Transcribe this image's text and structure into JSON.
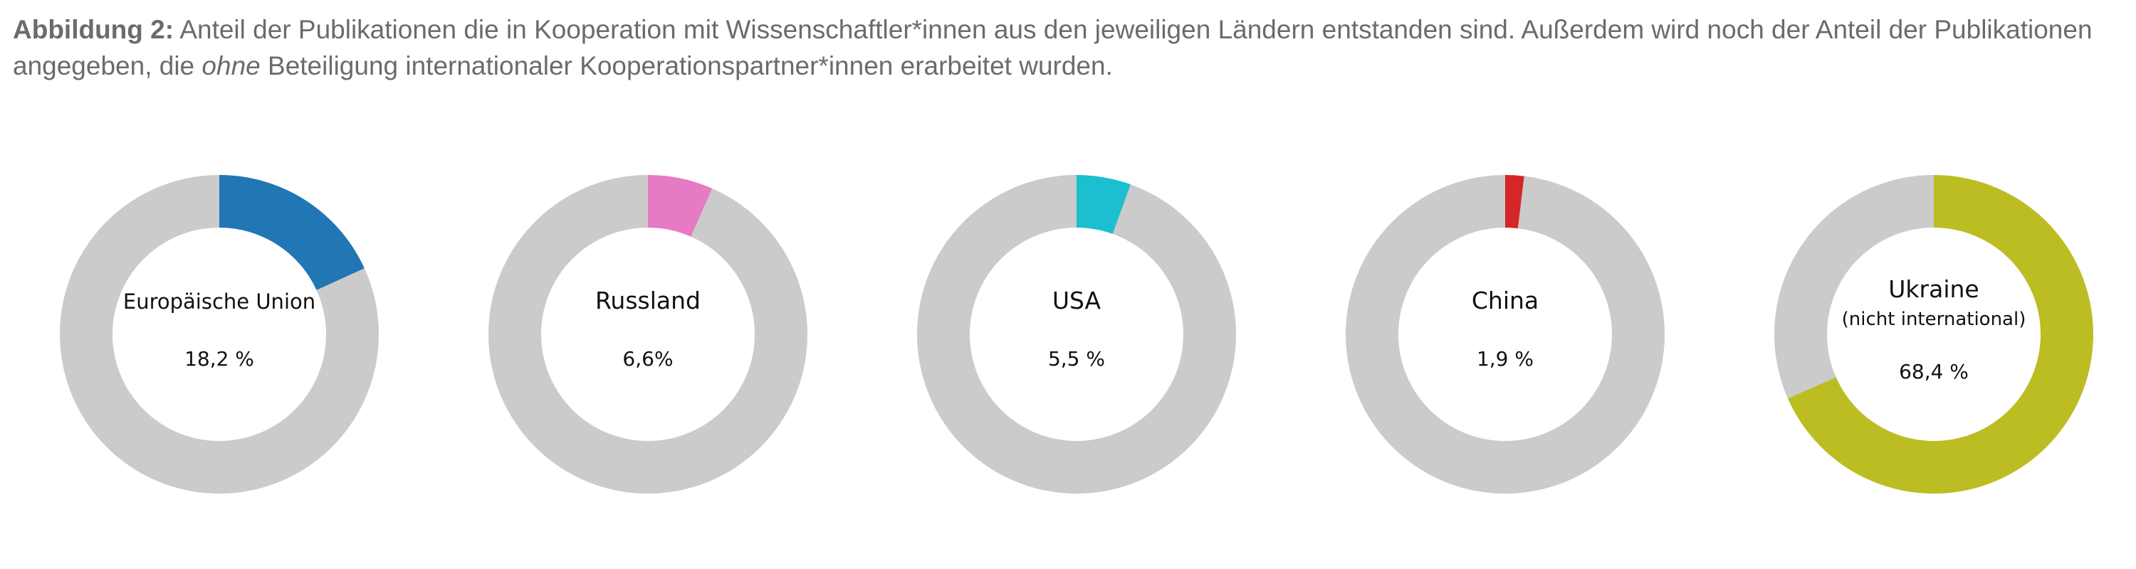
{
  "caption": {
    "label": "Abbildung 2:",
    "text_part1": " Anteil der Publikationen die in Kooperation mit Wissenschaftler*innen aus den jeweiligen Ländern entstanden sind. Außerdem wird noch der Anteil der Publikationen angegeben, die ",
    "text_emphasis": "ohne",
    "text_part2": " Beteiligung internationaler Kooperationspartner*innen erarbeitet wurden."
  },
  "colors": {
    "remainder": "#cbcbcb"
  },
  "chart_data": [
    {
      "type": "pie",
      "donut": true,
      "name": "Europäische Union",
      "subtitle": "",
      "value": 18.2,
      "value_label": "18,2 %",
      "color": "#2176b4"
    },
    {
      "type": "pie",
      "donut": true,
      "name": "Russland",
      "subtitle": "",
      "value": 6.6,
      "value_label": "6,6%",
      "color": "#e67ac4"
    },
    {
      "type": "pie",
      "donut": true,
      "name": "USA",
      "subtitle": "",
      "value": 5.5,
      "value_label": "5,5 %",
      "color": "#1bbfcf"
    },
    {
      "type": "pie",
      "donut": true,
      "name": "China",
      "subtitle": "",
      "value": 1.9,
      "value_label": "1,9 %",
      "color": "#d42727"
    },
    {
      "type": "pie",
      "donut": true,
      "name": "Ukraine",
      "subtitle": "(nicht international)",
      "value": 68.4,
      "value_label": "68,4 %",
      "color": "#bcbd22"
    }
  ]
}
